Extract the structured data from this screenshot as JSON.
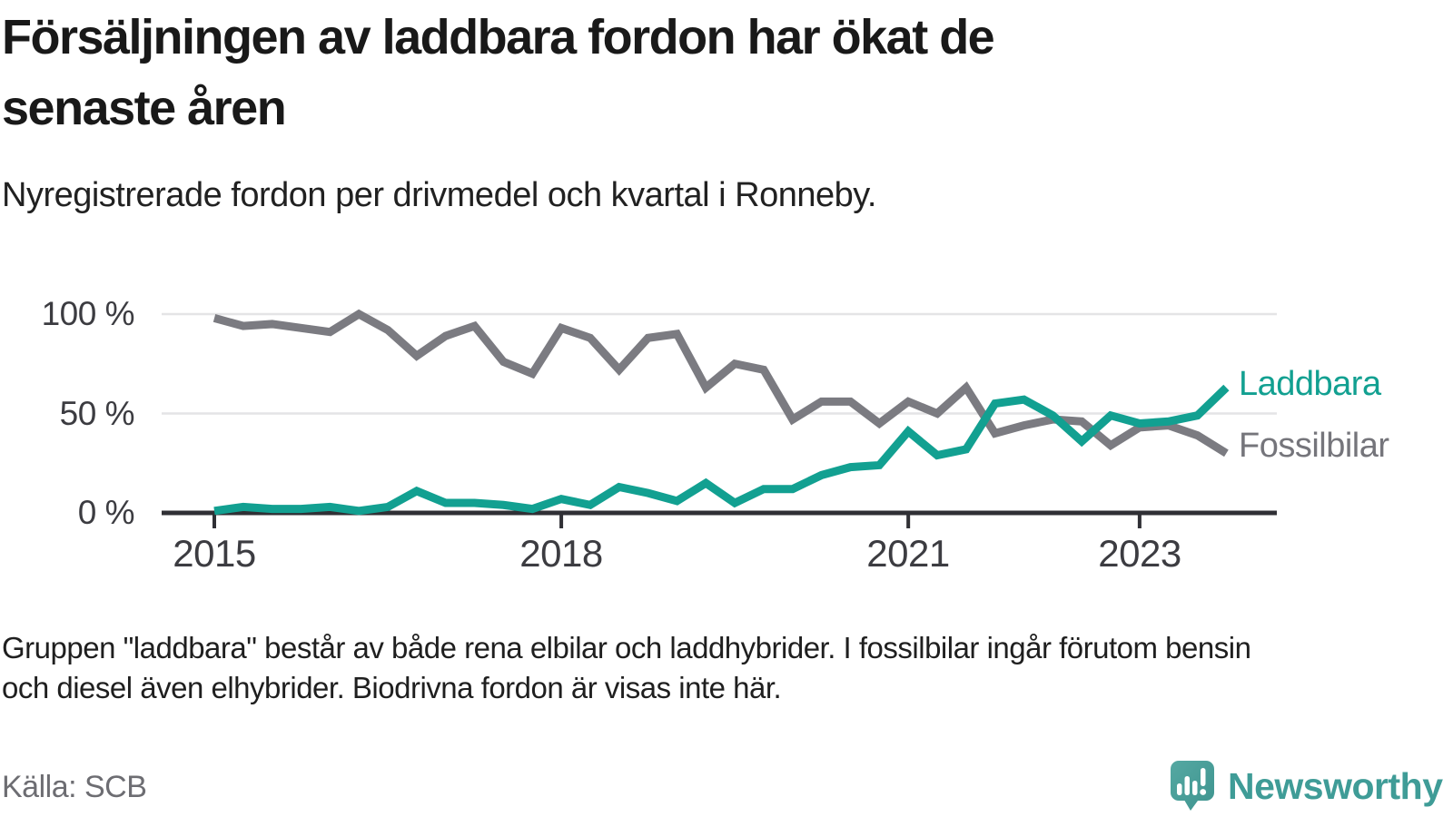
{
  "header": {
    "title_lines": [
      "Försäljningen av laddbara fordon har ökat de",
      "senaste åren"
    ],
    "subtitle": "Nyregistrerade fordon per drivmedel och kvartal i Ronneby."
  },
  "chart_data": {
    "type": "line",
    "title": "Försäljningen av laddbara fordon har ökat de senaste åren",
    "subtitle": "Nyregistrerade fordon per drivmedel och kvartal i Ronneby.",
    "x_unit": "quarter",
    "x_start": "2015 Q1",
    "x_end": "2023 Q4",
    "ylim": [
      0,
      100
    ],
    "grid": "horizontal-only",
    "grid_values": [
      100,
      50
    ],
    "y_ticks": [
      {
        "label": "100 %",
        "value": 100
      },
      {
        "label": "50 %",
        "value": 50
      },
      {
        "label": "0 %",
        "value": 0
      }
    ],
    "x_ticks": [
      {
        "label": "2015",
        "index": 0
      },
      {
        "label": "2018",
        "index": 12
      },
      {
        "label": "2021",
        "index": 24
      },
      {
        "label": "2023",
        "index": 32
      }
    ],
    "legend_position": "right-end-of-lines",
    "series": [
      {
        "name": "Fossilbilar",
        "color": "#7b7b81",
        "values": [
          98,
          94,
          95,
          93,
          91,
          100,
          92,
          79,
          89,
          94,
          76,
          70,
          93,
          88,
          72,
          88,
          90,
          63,
          75,
          72,
          47,
          56,
          56,
          45,
          56,
          50,
          63,
          40,
          44,
          47,
          46,
          34,
          43,
          44,
          39,
          30
        ]
      },
      {
        "name": "Laddbara",
        "color": "#12a091",
        "values": [
          1,
          3,
          2,
          2,
          3,
          1,
          3,
          11,
          5,
          5,
          4,
          2,
          7,
          4,
          13,
          10,
          6,
          15,
          5,
          12,
          12,
          19,
          23,
          24,
          41,
          29,
          32,
          55,
          57,
          49,
          36,
          49,
          45,
          46,
          49,
          63
        ]
      }
    ]
  },
  "footnote_lines": [
    "Gruppen \"laddbara\" består av både rena elbilar och laddhybrider. I fossilbilar ingår förutom bensin",
    "och diesel även elhybrider. Biodrivna fordon är visas inte här."
  ],
  "source": "Källa: SCB",
  "logo": {
    "wordmark": "Newsworthy",
    "icon": "newsworthy-pin-barchart-icon",
    "color": "#3f9c97"
  },
  "style": {
    "grid_color": "#e4e4e6",
    "axis_color": "#303035",
    "background": "#ffffff"
  }
}
